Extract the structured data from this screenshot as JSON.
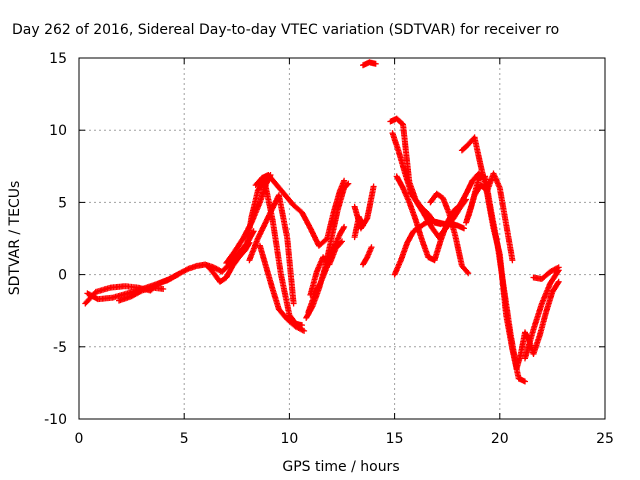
{
  "chart_data": {
    "type": "scatter",
    "title": "Day 262 of 2016, Sidereal Day-to-day VTEC variation (SDTVAR) for receiver ro",
    "xlabel": "GPS time / hours",
    "ylabel": "SDTVAR / TECUs",
    "xlim": [
      0,
      25
    ],
    "ylim": [
      -10,
      15
    ],
    "xticks": [
      0,
      5,
      10,
      15,
      20,
      25
    ],
    "yticks": [
      -10,
      -5,
      0,
      5,
      10,
      15
    ],
    "grid": true,
    "marker": "plus",
    "color": "#ff0000",
    "segments": [
      {
        "x": [
          0.3,
          0.8,
          1.5,
          2.2,
          2.8,
          3.4,
          3.8,
          4.3,
          4.8,
          5.2,
          5.6,
          6.0,
          6.4,
          6.8,
          7.2,
          7.6,
          8.0,
          8.3
        ],
        "y": [
          -2.0,
          -1.2,
          -0.9,
          -0.8,
          -0.9,
          -1.1,
          -0.6,
          -0.3,
          0.1,
          0.4,
          0.6,
          0.7,
          0.5,
          0.2,
          0.8,
          1.5,
          2.2,
          3.0
        ]
      },
      {
        "x": [
          0.4,
          0.9,
          1.6,
          2.3,
          3.0,
          3.6,
          4.2,
          4.7
        ],
        "y": [
          -1.3,
          -1.7,
          -1.6,
          -1.3,
          -1.0,
          -0.7,
          -0.4,
          0.0
        ]
      },
      {
        "x": [
          1.9,
          2.5,
          3.0,
          3.5,
          4.0
        ],
        "y": [
          -1.8,
          -1.5,
          -1.1,
          -0.9,
          -1.0
        ]
      },
      {
        "x": [
          6.1,
          6.4,
          6.7,
          7.0,
          7.3,
          7.6,
          7.9,
          8.1
        ],
        "y": [
          0.6,
          0.1,
          -0.5,
          -0.2,
          0.6,
          1.2,
          1.7,
          2.2
        ]
      },
      {
        "x": [
          7.0,
          7.4,
          7.8,
          8.2,
          8.6,
          8.9,
          9.1
        ],
        "y": [
          0.8,
          1.6,
          2.5,
          3.6,
          5.0,
          6.3,
          6.9
        ]
      },
      {
        "x": [
          8.4,
          8.7,
          9.0,
          9.4,
          9.8,
          10.2,
          10.6,
          11.0,
          11.4,
          11.8,
          12.1,
          12.4,
          12.6
        ],
        "y": [
          6.2,
          6.7,
          6.9,
          6.2,
          5.5,
          4.8,
          4.3,
          3.2,
          2.0,
          2.5,
          4.3,
          5.8,
          6.5
        ]
      },
      {
        "x": [
          8.0,
          8.2,
          8.5,
          8.8,
          9.2,
          9.6,
          10.0,
          10.3,
          10.6
        ],
        "y": [
          2.2,
          4.0,
          5.8,
          6.6,
          3.8,
          0.0,
          -2.8,
          -3.4,
          -3.5
        ]
      },
      {
        "x": [
          8.6,
          8.9,
          9.2,
          9.5,
          9.9,
          10.3,
          10.7
        ],
        "y": [
          2.0,
          0.5,
          -1.0,
          -2.4,
          -3.1,
          -3.6,
          -3.9
        ]
      },
      {
        "x": [
          8.1,
          8.5,
          9.0,
          9.5,
          9.9,
          10.2
        ],
        "y": [
          1.0,
          2.5,
          4.0,
          5.5,
          2.5,
          -2.0
        ]
      },
      {
        "x": [
          10.8,
          11.1,
          11.4,
          11.7,
          12.0,
          12.3,
          12.6,
          12.8
        ],
        "y": [
          -3.0,
          -2.2,
          -1.0,
          0.5,
          2.5,
          4.5,
          6.0,
          6.3
        ]
      },
      {
        "x": [
          10.9,
          11.2,
          11.5,
          11.8,
          12.1,
          12.4,
          12.6
        ],
        "y": [
          -2.6,
          -1.4,
          -0.5,
          0.6,
          1.8,
          2.8,
          3.3
        ]
      },
      {
        "x": [
          11.0,
          11.3,
          11.6,
          11.9,
          12.2,
          12.5
        ],
        "y": [
          -1.4,
          0.2,
          1.2,
          0.7,
          1.8,
          2.3
        ]
      },
      {
        "x": [
          13.1,
          13.4,
          13.7,
          14.0
        ],
        "y": [
          4.7,
          3.2,
          3.9,
          6.1
        ]
      },
      {
        "x": [
          13.1,
          13.3,
          13.5
        ],
        "y": [
          2.6,
          4.0,
          3.4
        ]
      },
      {
        "x": [
          13.5,
          13.7,
          13.9
        ],
        "y": [
          0.7,
          1.2,
          1.9
        ]
      },
      {
        "x": [
          13.5,
          13.8,
          14.1
        ],
        "y": [
          14.5,
          14.7,
          14.6
        ]
      },
      {
        "x": [
          14.8,
          15.1,
          15.4,
          15.7,
          16.0,
          16.3,
          16.6,
          16.9,
          17.2
        ],
        "y": [
          10.6,
          10.8,
          10.4,
          6.4,
          5.2,
          4.6,
          4.2,
          3.6,
          3.5
        ]
      },
      {
        "x": [
          14.9,
          15.2,
          15.5,
          15.8,
          16.1,
          16.4,
          16.8,
          17.2
        ],
        "y": [
          9.8,
          8.5,
          7.0,
          5.6,
          4.9,
          4.2,
          3.2,
          2.4
        ]
      },
      {
        "x": [
          15.1,
          15.4,
          15.7,
          16.0,
          16.3,
          16.6,
          16.9,
          17.2,
          17.5,
          17.8,
          18.1,
          18.4,
          18.7,
          19.0
        ],
        "y": [
          6.8,
          6.0,
          5.0,
          3.8,
          2.4,
          1.2,
          1.0,
          2.4,
          3.6,
          4.4,
          4.8,
          5.6,
          6.5,
          7.0
        ]
      },
      {
        "x": [
          15.0,
          15.3,
          15.6,
          15.9,
          16.2,
          16.5,
          16.8,
          17.1,
          17.4,
          17.7,
          18.0,
          18.3
        ],
        "y": [
          0.0,
          1.0,
          2.2,
          3.0,
          3.3,
          3.6,
          3.7,
          3.6,
          3.5,
          3.5,
          3.4,
          3.2
        ]
      },
      {
        "x": [
          16.7,
          17.0,
          17.3,
          17.6,
          17.9,
          18.2,
          18.5
        ],
        "y": [
          5.0,
          5.6,
          5.3,
          4.2,
          2.6,
          0.6,
          0.1
        ]
      },
      {
        "x": [
          17.2,
          17.5,
          17.8,
          18.1,
          18.4
        ],
        "y": [
          2.8,
          3.3,
          3.9,
          4.6,
          5.2
        ]
      },
      {
        "x": [
          18.2,
          18.5,
          18.8,
          19.1,
          19.4,
          19.7,
          20.0,
          20.3,
          20.6,
          20.9,
          21.2
        ],
        "y": [
          8.6,
          9.0,
          9.5,
          7.5,
          5.6,
          3.2,
          1.4,
          -2.8,
          -5.2,
          -7.2,
          -7.4
        ]
      },
      {
        "x": [
          18.5,
          18.8,
          19.1,
          19.4,
          19.7,
          20.0,
          20.3,
          20.6
        ],
        "y": [
          4.0,
          5.5,
          6.2,
          5.8,
          7.0,
          6.0,
          3.5,
          1.0
        ]
      },
      {
        "x": [
          18.4,
          18.7,
          19.0,
          19.3,
          19.6,
          19.9,
          20.2,
          20.5,
          20.8
        ],
        "y": [
          3.6,
          5.0,
          6.7,
          6.8,
          4.3,
          2.0,
          -1.0,
          -4.0,
          -6.5
        ]
      },
      {
        "x": [
          20.8,
          21.0,
          21.2,
          21.4,
          21.6,
          21.9,
          22.2,
          22.5,
          22.8
        ],
        "y": [
          -6.5,
          -5.5,
          -4.0,
          -4.6,
          -5.5,
          -4.2,
          -2.6,
          -1.2,
          -0.5
        ]
      },
      {
        "x": [
          21.2,
          21.6,
          22.0,
          22.4,
          22.8
        ],
        "y": [
          -5.8,
          -3.8,
          -2.0,
          -0.6,
          0.3
        ]
      },
      {
        "x": [
          21.6,
          22.0,
          22.4,
          22.8
        ],
        "y": [
          -0.2,
          -0.3,
          0.2,
          0.5
        ]
      }
    ]
  }
}
